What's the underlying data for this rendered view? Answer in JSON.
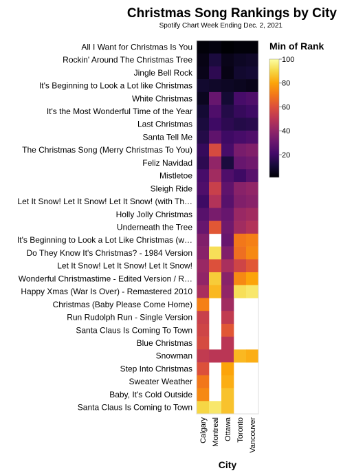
{
  "chart_data": {
    "type": "heatmap",
    "title": "Christmas Song Rankings by City",
    "subtitle": "Spotify Chart Week Ending Dec. 2, 2021",
    "xlabel": "City",
    "legend_title": "Min of Rank",
    "legend_ticks": [
      100,
      80,
      60,
      40,
      20
    ],
    "value_range": [
      1,
      100
    ],
    "colorscheme": "inferno",
    "columns": [
      "Calgary",
      "Montreal",
      "Ottawa",
      "Toronto",
      "Vancouver"
    ],
    "rows": [
      "All I Want for Christmas Is You",
      "Rockin' Around The Christmas Tree",
      "Jingle Bell Rock",
      "It's Beginning to Look a Lot like Christmas",
      "White Christmas",
      "It's the Most Wonderful Time of the Year",
      "Last Christmas",
      "Santa Tell Me",
      "The Christmas Song (Merry Christmas To You)",
      "Feliz Navidad",
      "Mistletoe",
      "Sleigh Ride",
      "Let It Snow! Let It Snow! Let It Snow! (with Th…",
      "Holly Jolly Christmas",
      "Underneath the Tree",
      "It's Beginning to Look a Lot Like Christmas (w…",
      "Do They Know It's Christmas? - 1984 Version",
      "Let It Snow! Let It Snow! Let It Snow!",
      "Wonderful Christmastime - Edited Version / R…",
      "Happy Xmas (War Is Over) - Remastered 2010",
      "Christmas (Baby Please Come Home)",
      "Run Rudolph Run - Single Version",
      "Santa Claus Is Coming To Town",
      "Blue Christmas",
      "Snowman",
      "Step Into Christmas",
      "Sweater Weather",
      "Baby, It's Cold Outside",
      "Santa Claus Is Coming to Town"
    ],
    "values": [
      [
        2,
        3,
        1,
        2,
        2
      ],
      [
        4,
        12,
        5,
        7,
        8
      ],
      [
        5,
        16,
        4,
        9,
        10
      ],
      [
        9,
        8,
        7,
        6,
        5
      ],
      [
        6,
        30,
        10,
        22,
        24
      ],
      [
        10,
        24,
        14,
        18,
        20
      ],
      [
        12,
        20,
        16,
        14,
        15
      ],
      [
        14,
        28,
        20,
        22,
        24
      ],
      [
        18,
        58,
        22,
        34,
        36
      ],
      [
        16,
        40,
        12,
        30,
        32
      ],
      [
        22,
        44,
        24,
        20,
        26
      ],
      [
        24,
        54,
        28,
        38,
        40
      ],
      [
        20,
        48,
        26,
        36,
        38
      ],
      [
        26,
        34,
        30,
        42,
        44
      ],
      [
        30,
        62,
        32,
        44,
        48
      ],
      [
        36,
        null,
        30,
        70,
        72
      ],
      [
        38,
        92,
        36,
        68,
        74
      ],
      [
        42,
        60,
        46,
        56,
        62
      ],
      [
        40,
        88,
        38,
        74,
        80
      ],
      [
        46,
        84,
        40,
        92,
        94
      ],
      [
        72,
        null,
        44,
        null,
        null
      ],
      [
        54,
        null,
        52,
        null,
        null
      ],
      [
        56,
        null,
        62,
        null,
        null
      ],
      [
        58,
        null,
        50,
        null,
        null
      ],
      [
        52,
        50,
        50,
        84,
        82
      ],
      [
        60,
        null,
        80,
        null,
        null
      ],
      [
        70,
        null,
        82,
        null,
        null
      ],
      [
        74,
        null,
        86,
        null,
        null
      ],
      [
        90,
        94,
        86,
        null,
        null
      ]
    ]
  }
}
